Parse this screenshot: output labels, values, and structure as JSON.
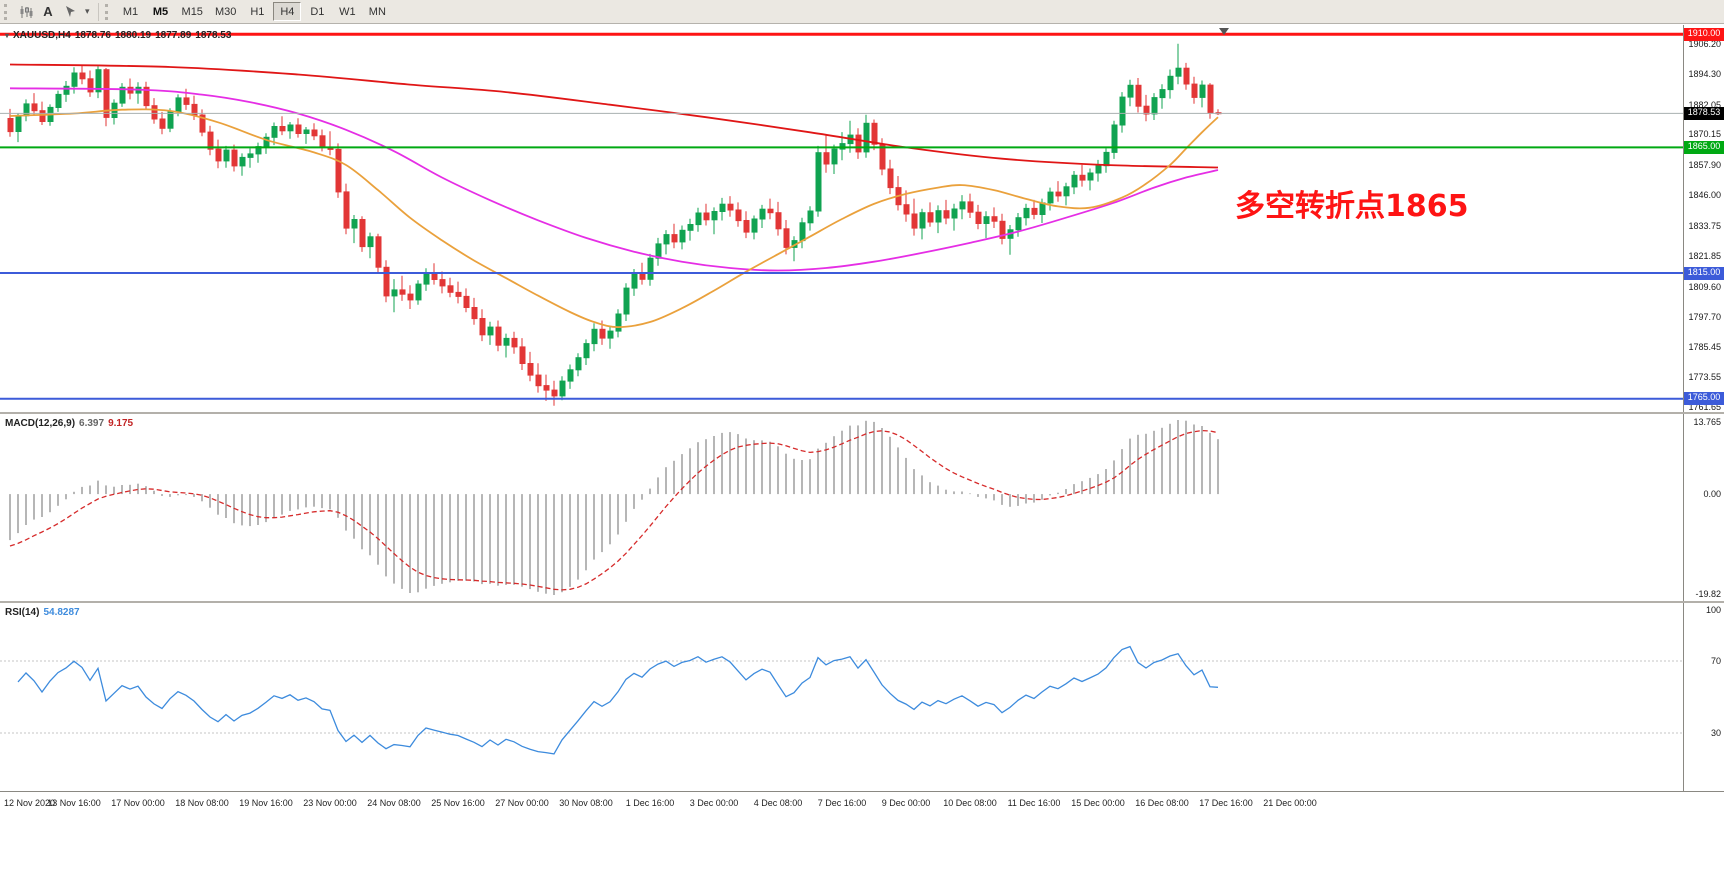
{
  "toolbar": {
    "text_tool_label": "A",
    "timeframes": [
      "M1",
      "M5",
      "M15",
      "M30",
      "H1",
      "H4",
      "D1",
      "W1",
      "MN"
    ],
    "active_timeframe": "H4",
    "bold_timeframe": "M5"
  },
  "chart": {
    "title_symbol": "XAUUSD,H4",
    "title_open": "1878.76",
    "title_high": "1880.19",
    "title_low": "1877.89",
    "title_close": "1878.53",
    "annotation_text": "多空转折点1865"
  },
  "macd_label": {
    "name": "MACD(12,26,9)",
    "value_main": "6.397",
    "value_signal": "9.175"
  },
  "rsi_label": {
    "name": "RSI(14)",
    "value": "54.8287"
  },
  "chart_data": {
    "type": "candlestick",
    "symbol": "XAUUSD",
    "timeframe": "H4",
    "price_axis": {
      "min": 1759.7,
      "max": 1913.7,
      "ticks": [
        "1906.20",
        "1894.30",
        "1882.05",
        "1870.15",
        "1857.90",
        "1846.00",
        "1833.75",
        "1821.85",
        "1809.60",
        "1797.70",
        "1785.45",
        "1773.55",
        "1761.65"
      ]
    },
    "time_labels": [
      "12 Nov 2020",
      "13 Nov 16:00",
      "17 Nov 00:00",
      "18 Nov 08:00",
      "19 Nov 16:00",
      "23 Nov 00:00",
      "24 Nov 08:00",
      "25 Nov 16:00",
      "27 Nov 00:00",
      "30 Nov 08:00",
      "1 Dec 16:00",
      "3 Dec 00:00",
      "4 Dec 08:00",
      "7 Dec 16:00",
      "9 Dec 00:00",
      "10 Dec 08:00",
      "11 Dec 16:00",
      "15 Dec 00:00",
      "16 Dec 08:00",
      "17 Dec 16:00",
      "21 Dec 00:00"
    ],
    "candle_colors": {
      "up": "#10a351",
      "down": "#e23636"
    },
    "candles": [
      [
        1876.5,
        1880.3,
        1869.2,
        1871.3
      ],
      [
        1871.3,
        1878.6,
        1867.1,
        1877.6
      ],
      [
        1877.6,
        1884.1,
        1875.4,
        1882.3
      ],
      [
        1882.3,
        1886.6,
        1878.1,
        1879.6
      ],
      [
        1879.6,
        1883.2,
        1873.9,
        1875.3
      ],
      [
        1875.3,
        1882.1,
        1873.6,
        1880.9
      ],
      [
        1880.9,
        1887.6,
        1879.1,
        1886.1
      ],
      [
        1886.1,
        1891.4,
        1883.1,
        1889.3
      ],
      [
        1889.3,
        1896.9,
        1886.4,
        1894.6
      ],
      [
        1894.6,
        1898.0,
        1890.1,
        1892.3
      ],
      [
        1892.3,
        1895.6,
        1885.1,
        1887.1
      ],
      [
        1887.1,
        1897.3,
        1884.6,
        1895.9
      ],
      [
        1895.9,
        1896.6,
        1873.4,
        1876.9
      ],
      [
        1876.9,
        1884.1,
        1874.1,
        1882.6
      ],
      [
        1882.6,
        1890.6,
        1881.1,
        1888.9
      ],
      [
        1888.9,
        1892.4,
        1884.1,
        1886.6
      ],
      [
        1886.6,
        1890.9,
        1882.4,
        1888.9
      ],
      [
        1888.9,
        1891.1,
        1879.9,
        1881.6
      ],
      [
        1881.6,
        1884.6,
        1874.4,
        1876.3
      ],
      [
        1876.3,
        1879.1,
        1870.2,
        1872.6
      ],
      [
        1872.6,
        1880.6,
        1871.1,
        1879.3
      ],
      [
        1879.3,
        1886.1,
        1877.4,
        1884.7
      ],
      [
        1884.7,
        1888.3,
        1879.9,
        1882.1
      ],
      [
        1882.1,
        1885.6,
        1875.9,
        1877.9
      ],
      [
        1877.9,
        1880.1,
        1869.4,
        1871.1
      ],
      [
        1871.1,
        1873.6,
        1861.9,
        1864.3
      ],
      [
        1864.3,
        1868.1,
        1856.7,
        1859.6
      ],
      [
        1859.6,
        1865.6,
        1856.9,
        1863.9
      ],
      [
        1863.9,
        1866.1,
        1855.4,
        1857.6
      ],
      [
        1857.6,
        1862.6,
        1853.7,
        1861.0
      ],
      [
        1861.0,
        1864.6,
        1856.9,
        1862.4
      ],
      [
        1862.4,
        1866.9,
        1858.9,
        1865.3
      ],
      [
        1865.3,
        1870.6,
        1862.4,
        1869.0
      ],
      [
        1869.0,
        1874.9,
        1865.9,
        1873.3
      ],
      [
        1873.3,
        1877.4,
        1869.9,
        1871.6
      ],
      [
        1871.6,
        1875.1,
        1868.4,
        1873.9
      ],
      [
        1873.9,
        1876.6,
        1868.9,
        1870.5
      ],
      [
        1870.5,
        1873.1,
        1866.4,
        1871.9
      ],
      [
        1871.9,
        1874.6,
        1867.9,
        1869.6
      ],
      [
        1869.6,
        1872.1,
        1863.4,
        1865.1
      ],
      [
        1865.1,
        1871.4,
        1861.9,
        1864.2
      ],
      [
        1864.2,
        1866.6,
        1844.9,
        1847.3
      ],
      [
        1847.3,
        1850.6,
        1830.4,
        1832.9
      ],
      [
        1832.9,
        1838.1,
        1826.9,
        1836.3
      ],
      [
        1836.3,
        1837.6,
        1823.4,
        1825.5
      ],
      [
        1825.5,
        1831.1,
        1820.9,
        1829.4
      ],
      [
        1829.4,
        1830.6,
        1815.4,
        1817.3
      ],
      [
        1817.3,
        1820.1,
        1803.4,
        1805.9
      ],
      [
        1805.9,
        1812.6,
        1799.4,
        1808.3
      ],
      [
        1808.3,
        1813.9,
        1803.9,
        1806.6
      ],
      [
        1806.6,
        1810.1,
        1800.7,
        1804.3
      ],
      [
        1804.3,
        1812.1,
        1802.4,
        1810.6
      ],
      [
        1810.6,
        1816.9,
        1807.9,
        1815.0
      ],
      [
        1815.0,
        1818.9,
        1810.4,
        1812.4
      ],
      [
        1812.4,
        1815.6,
        1806.9,
        1809.9
      ],
      [
        1809.9,
        1813.1,
        1805.4,
        1807.3
      ],
      [
        1807.3,
        1811.6,
        1802.9,
        1805.7
      ],
      [
        1805.7,
        1808.9,
        1799.4,
        1801.3
      ],
      [
        1801.3,
        1805.1,
        1794.4,
        1796.9
      ],
      [
        1796.9,
        1800.6,
        1787.9,
        1790.4
      ],
      [
        1790.4,
        1795.6,
        1786.4,
        1793.5
      ],
      [
        1793.5,
        1796.1,
        1783.9,
        1786.3
      ],
      [
        1786.3,
        1790.9,
        1781.4,
        1789.0
      ],
      [
        1789.0,
        1791.6,
        1782.9,
        1785.6
      ],
      [
        1785.6,
        1789.1,
        1776.4,
        1779.0
      ],
      [
        1779.0,
        1783.6,
        1771.9,
        1774.4
      ],
      [
        1774.4,
        1779.1,
        1767.4,
        1770.2
      ],
      [
        1770.2,
        1774.6,
        1764.1,
        1768.4
      ],
      [
        1768.4,
        1772.1,
        1762.2,
        1766.1
      ],
      [
        1766.1,
        1773.9,
        1764.4,
        1772.0
      ],
      [
        1772.0,
        1778.6,
        1768.9,
        1776.5
      ],
      [
        1776.5,
        1783.1,
        1773.9,
        1781.3
      ],
      [
        1781.3,
        1788.6,
        1778.4,
        1786.9
      ],
      [
        1786.9,
        1795.0,
        1783.9,
        1792.6
      ],
      [
        1792.6,
        1796.1,
        1786.4,
        1789.1
      ],
      [
        1789.1,
        1793.6,
        1784.9,
        1791.9
      ],
      [
        1791.9,
        1800.6,
        1789.4,
        1798.7
      ],
      [
        1798.7,
        1810.9,
        1795.9,
        1809.0
      ],
      [
        1809.0,
        1816.6,
        1805.9,
        1814.8
      ],
      [
        1814.8,
        1819.1,
        1810.4,
        1812.5
      ],
      [
        1812.5,
        1822.6,
        1809.9,
        1820.9
      ],
      [
        1820.9,
        1829.0,
        1817.9,
        1826.6
      ],
      [
        1826.6,
        1832.1,
        1822.4,
        1830.3
      ],
      [
        1830.3,
        1834.6,
        1824.9,
        1827.4
      ],
      [
        1827.4,
        1833.9,
        1824.4,
        1832.0
      ],
      [
        1832.0,
        1836.6,
        1827.9,
        1834.3
      ],
      [
        1834.3,
        1841.0,
        1831.4,
        1838.9
      ],
      [
        1838.9,
        1842.6,
        1833.9,
        1836.2
      ],
      [
        1836.2,
        1841.1,
        1830.4,
        1839.5
      ],
      [
        1839.5,
        1844.9,
        1835.9,
        1842.4
      ],
      [
        1842.4,
        1845.6,
        1837.4,
        1840.1
      ],
      [
        1840.1,
        1843.1,
        1833.4,
        1835.9
      ],
      [
        1835.9,
        1839.6,
        1828.9,
        1831.3
      ],
      [
        1831.3,
        1837.9,
        1828.4,
        1836.5
      ],
      [
        1836.5,
        1842.1,
        1832.9,
        1840.4
      ],
      [
        1840.4,
        1844.6,
        1836.4,
        1839.0
      ],
      [
        1839.0,
        1843.3,
        1829.9,
        1832.6
      ],
      [
        1832.6,
        1836.1,
        1822.4,
        1825.2
      ],
      [
        1825.2,
        1829.6,
        1819.7,
        1827.9
      ],
      [
        1827.9,
        1837.0,
        1824.9,
        1835.0
      ],
      [
        1835.0,
        1841.6,
        1831.9,
        1839.7
      ],
      [
        1839.7,
        1865.6,
        1837.4,
        1862.9
      ],
      [
        1862.9,
        1869.9,
        1854.9,
        1858.4
      ],
      [
        1858.4,
        1866.1,
        1854.4,
        1864.3
      ],
      [
        1864.3,
        1871.1,
        1859.9,
        1866.5
      ],
      [
        1866.5,
        1875.6,
        1862.9,
        1869.9
      ],
      [
        1869.9,
        1872.6,
        1860.4,
        1863.2
      ],
      [
        1863.2,
        1878.0,
        1860.9,
        1874.6
      ],
      [
        1874.6,
        1876.1,
        1863.9,
        1866.3
      ],
      [
        1866.3,
        1868.6,
        1853.9,
        1856.4
      ],
      [
        1856.4,
        1860.1,
        1846.4,
        1849.0
      ],
      [
        1849.0,
        1853.6,
        1839.9,
        1842.2
      ],
      [
        1842.2,
        1847.9,
        1835.4,
        1838.5
      ],
      [
        1838.5,
        1844.6,
        1829.9,
        1832.9
      ],
      [
        1832.9,
        1840.6,
        1828.4,
        1839.0
      ],
      [
        1839.0,
        1843.1,
        1833.4,
        1835.3
      ],
      [
        1835.3,
        1841.9,
        1830.9,
        1839.8
      ],
      [
        1839.8,
        1844.1,
        1834.4,
        1836.9
      ],
      [
        1836.9,
        1842.6,
        1831.9,
        1840.5
      ],
      [
        1840.5,
        1846.0,
        1836.4,
        1843.3
      ],
      [
        1843.3,
        1846.6,
        1836.9,
        1839.2
      ],
      [
        1839.2,
        1842.1,
        1832.4,
        1834.7
      ],
      [
        1834.7,
        1839.6,
        1828.9,
        1837.4
      ],
      [
        1837.4,
        1841.1,
        1832.9,
        1835.6
      ],
      [
        1835.6,
        1838.6,
        1826.4,
        1828.8
      ],
      [
        1828.8,
        1834.1,
        1822.3,
        1832.2
      ],
      [
        1832.2,
        1838.9,
        1829.4,
        1837.0
      ],
      [
        1837.0,
        1842.6,
        1833.9,
        1840.7
      ],
      [
        1840.7,
        1844.1,
        1836.4,
        1838.3
      ],
      [
        1838.3,
        1844.6,
        1834.9,
        1842.9
      ],
      [
        1842.9,
        1849.0,
        1839.9,
        1847.2
      ],
      [
        1847.2,
        1851.6,
        1843.4,
        1845.7
      ],
      [
        1845.7,
        1850.9,
        1841.9,
        1849.3
      ],
      [
        1849.3,
        1855.6,
        1846.4,
        1853.9
      ],
      [
        1853.9,
        1858.1,
        1849.4,
        1852.0
      ],
      [
        1852.0,
        1856.6,
        1847.9,
        1854.8
      ],
      [
        1854.8,
        1860.0,
        1851.4,
        1857.7
      ],
      [
        1857.7,
        1864.6,
        1854.9,
        1863.0
      ],
      [
        1863.0,
        1875.6,
        1860.4,
        1873.9
      ],
      [
        1873.9,
        1887.0,
        1870.9,
        1885.0
      ],
      [
        1885.0,
        1891.9,
        1881.4,
        1889.7
      ],
      [
        1889.7,
        1892.6,
        1878.9,
        1881.4
      ],
      [
        1881.4,
        1885.9,
        1875.4,
        1878.3
      ],
      [
        1878.3,
        1886.6,
        1875.9,
        1884.8
      ],
      [
        1884.8,
        1890.1,
        1880.4,
        1888.0
      ],
      [
        1888.0,
        1896.0,
        1884.4,
        1893.3
      ],
      [
        1893.3,
        1906.2,
        1890.1,
        1896.5
      ],
      [
        1896.5,
        1898.6,
        1887.9,
        1890.2
      ],
      [
        1890.2,
        1893.1,
        1882.4,
        1884.9
      ],
      [
        1884.9,
        1891.6,
        1880.9,
        1889.8
      ],
      [
        1889.8,
        1890.6,
        1876.4,
        1878.9
      ],
      [
        1878.8,
        1880.2,
        1877.9,
        1878.5
      ]
    ],
    "overlays": [
      {
        "name": "ma-slow-red",
        "color": "#e01616",
        "width": 1.8,
        "points": [
          [
            0,
            1898
          ],
          [
            20,
            1897
          ],
          [
            36,
            1894
          ],
          [
            50,
            1890
          ],
          [
            62,
            1887
          ],
          [
            75,
            1882
          ],
          [
            87,
            1877
          ],
          [
            100,
            1871
          ],
          [
            112,
            1865
          ],
          [
            124,
            1860.5
          ],
          [
            137,
            1858
          ],
          [
            151,
            1857
          ]
        ]
      },
      {
        "name": "ma-mid-magenta",
        "color": "#e52ee5",
        "width": 1.8,
        "points": [
          [
            0,
            1888.5
          ],
          [
            16,
            1888
          ],
          [
            24,
            1886
          ],
          [
            30,
            1883
          ],
          [
            36,
            1878.5
          ],
          [
            42,
            1872
          ],
          [
            48,
            1863.5
          ],
          [
            54,
            1853
          ],
          [
            60,
            1844
          ],
          [
            66,
            1836
          ],
          [
            72,
            1829
          ],
          [
            78,
            1823.5
          ],
          [
            84,
            1819.5
          ],
          [
            90,
            1817
          ],
          [
            96,
            1816
          ],
          [
            102,
            1817
          ],
          [
            108,
            1819.5
          ],
          [
            114,
            1823
          ],
          [
            120,
            1827
          ],
          [
            126,
            1831.5
          ],
          [
            132,
            1837
          ],
          [
            138,
            1843
          ],
          [
            143,
            1849
          ],
          [
            147,
            1853
          ],
          [
            151,
            1856
          ]
        ]
      },
      {
        "name": "ma-fast-orange",
        "color": "#eaa13c",
        "width": 1.8,
        "points": [
          [
            0,
            1877.5
          ],
          [
            8,
            1878.5
          ],
          [
            14,
            1880
          ],
          [
            20,
            1879.5
          ],
          [
            26,
            1875
          ],
          [
            32,
            1868
          ],
          [
            38,
            1863
          ],
          [
            42,
            1858
          ],
          [
            46,
            1848
          ],
          [
            50,
            1837
          ],
          [
            54,
            1828
          ],
          [
            58,
            1820
          ],
          [
            62,
            1813
          ],
          [
            66,
            1806
          ],
          [
            70,
            1799.5
          ],
          [
            73,
            1795.5
          ],
          [
            76,
            1793.5
          ],
          [
            80,
            1795.5
          ],
          [
            84,
            1801
          ],
          [
            88,
            1808
          ],
          [
            92,
            1815.5
          ],
          [
            96,
            1822.5
          ],
          [
            100,
            1829.5
          ],
          [
            104,
            1836.5
          ],
          [
            108,
            1842.5
          ],
          [
            112,
            1846.5
          ],
          [
            116,
            1849
          ],
          [
            119,
            1850
          ],
          [
            123,
            1848
          ],
          [
            127,
            1844.5
          ],
          [
            131,
            1841.5
          ],
          [
            135,
            1841
          ],
          [
            139,
            1845
          ],
          [
            142,
            1850.5
          ],
          [
            145,
            1858
          ],
          [
            147,
            1864.5
          ],
          [
            149,
            1871
          ],
          [
            151,
            1877
          ]
        ]
      }
    ],
    "hlines": [
      {
        "price": 1910.0,
        "color": "#fe1414",
        "width": 3,
        "label": "1910.00"
      },
      {
        "price": 1865.0,
        "color": "#00a913",
        "width": 2,
        "label": "1865.00"
      },
      {
        "price": 1815.0,
        "color": "#3c5bd9",
        "width": 2,
        "label": "1815.00"
      },
      {
        "price": 1765.0,
        "color": "#3c5bd9",
        "width": 2,
        "label": "1765.00"
      }
    ],
    "current_price": {
      "value": 1878.53,
      "label": "1878.53"
    },
    "macd": {
      "params": "12,26,9",
      "axis_top": "13.765",
      "axis_zero": "0.00",
      "axis_bottom": "-19.82",
      "hist_color": "#b6b6b6",
      "signal_color": "#d62b2b"
    },
    "rsi": {
      "period": 14,
      "levels": [
        "100",
        "70",
        "30"
      ],
      "color": "#3d8bdd"
    }
  }
}
